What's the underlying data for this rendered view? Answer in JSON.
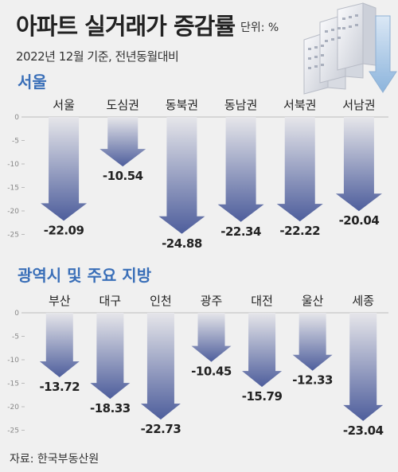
{
  "header": {
    "title": "아파트 실거래가 증감률",
    "unit": "단위: %",
    "subtitle": "2022년 12월 기준, 전년동월대비"
  },
  "footer": {
    "source": "자료: 한국부동산원"
  },
  "colors": {
    "background": "#f0f0f0",
    "section_title": "#3a6fb8",
    "bar_top": "#e6e6ea",
    "bar_bottom": "#4e5e9c",
    "value_text": "#222222",
    "axis_text": "#888888"
  },
  "icons": {
    "building": "building-with-down-arrow-icon"
  },
  "chart_data": [
    {
      "type": "bar",
      "title": "서울",
      "categories": [
        "서울",
        "도심권",
        "동북권",
        "동남권",
        "서북권",
        "서남권"
      ],
      "values": [
        -22.09,
        -10.54,
        -24.88,
        -22.34,
        -22.22,
        -20.04
      ],
      "value_labels": [
        "-22.09",
        "-10.54",
        "-24.88",
        "-22.34",
        "-22.22",
        "-20.04"
      ],
      "yticks": [
        "0",
        "-5",
        "-10",
        "-15",
        "-20",
        "-25"
      ],
      "ylim": [
        -25,
        0
      ],
      "grid": false
    },
    {
      "type": "bar",
      "title": "광역시 및 주요 지방",
      "categories": [
        "부산",
        "대구",
        "인천",
        "광주",
        "대전",
        "울산",
        "세종"
      ],
      "values": [
        -13.72,
        -18.33,
        -22.73,
        -10.45,
        -15.79,
        -12.33,
        -23.04
      ],
      "value_labels": [
        "-13.72",
        "-18.33",
        "-22.73",
        "-10.45",
        "-15.79",
        "-12.33",
        "-23.04"
      ],
      "yticks": [
        "0",
        "-5",
        "-10",
        "-15",
        "-20",
        "-25"
      ],
      "ylim": [
        -25,
        0
      ],
      "grid": false
    }
  ]
}
